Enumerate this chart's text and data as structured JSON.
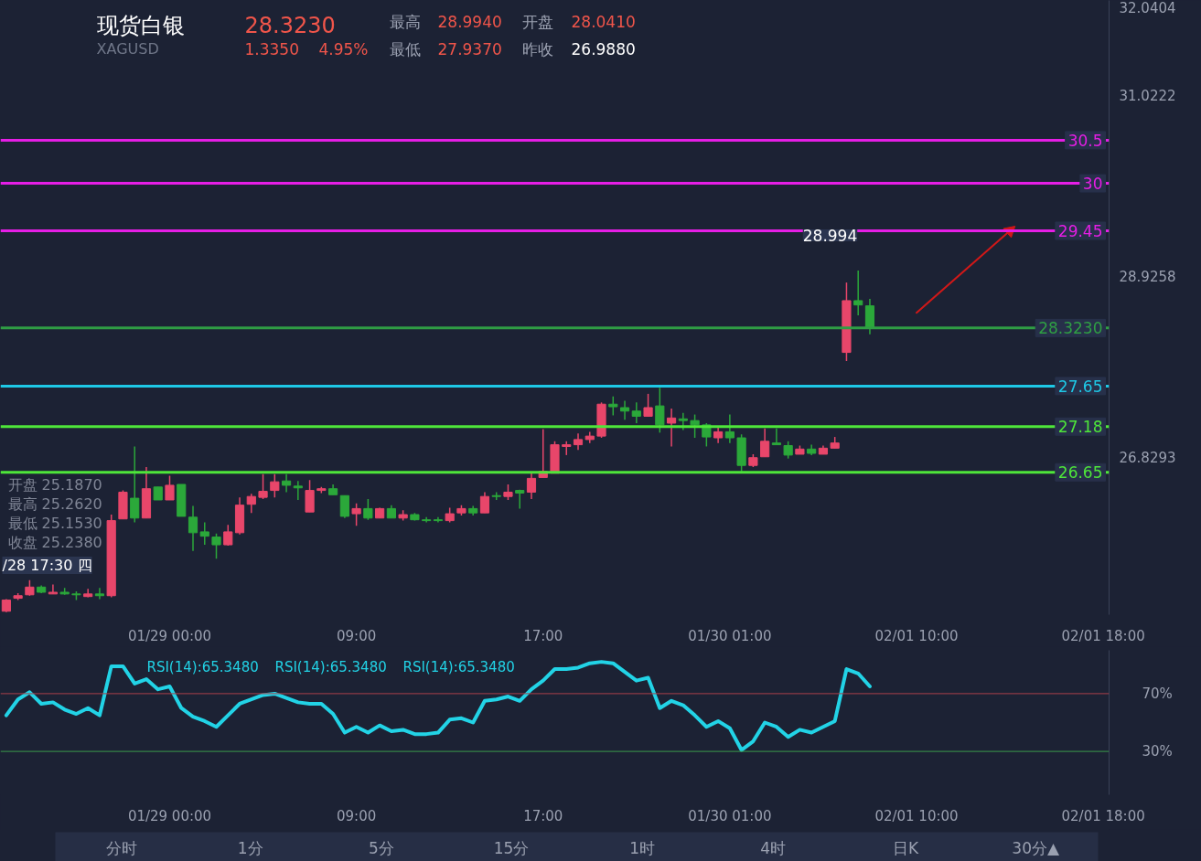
{
  "chart_data": [
    {
      "type": "candlestick",
      "title": "现货白银",
      "subtitle": "XAGUSD",
      "categories": [
        null,
        null,
        null,
        null,
        null,
        null,
        null,
        null,
        null,
        null,
        null,
        null,
        null,
        null,
        "01/29 00:00",
        null,
        null,
        null,
        null,
        null,
        null,
        null,
        null,
        null,
        null,
        null,
        null,
        null,
        null,
        null,
        "09:00",
        null,
        null,
        null,
        null,
        null,
        null,
        null,
        null,
        null,
        null,
        null,
        null,
        null,
        null,
        null,
        "17:00",
        null,
        null,
        null,
        null,
        null,
        null,
        null,
        null,
        null,
        null,
        null,
        null,
        null,
        null,
        null,
        "01/30 01:00",
        null,
        null,
        null,
        null,
        null,
        null,
        null,
        null,
        null,
        null,
        null,
        null,
        null,
        null,
        null,
        "02/01 10:00",
        null,
        null,
        null,
        null,
        null,
        null,
        null,
        null,
        null,
        null,
        null,
        null,
        null,
        null,
        null,
        "02/01 18:00"
      ],
      "ohlc": [
        [
          25.04,
          25.18,
          25.03,
          25.17
        ],
        [
          25.19,
          25.25,
          25.17,
          25.22
        ],
        [
          25.23,
          25.4,
          25.22,
          25.32
        ],
        [
          25.32,
          25.34,
          25.25,
          25.26
        ],
        [
          25.24,
          25.35,
          25.24,
          25.26
        ],
        [
          25.26,
          25.31,
          25.23,
          25.24
        ],
        [
          25.24,
          25.27,
          25.17,
          25.23
        ],
        [
          25.21,
          25.3,
          25.2,
          25.24
        ],
        [
          25.24,
          25.31,
          25.18,
          25.22
        ],
        [
          25.22,
          26.16,
          25.2,
          26.09
        ],
        [
          26.11,
          26.44,
          26.11,
          26.42
        ],
        [
          26.35,
          26.95,
          26.07,
          26.12
        ],
        [
          26.12,
          26.71,
          26.12,
          26.46
        ],
        [
          26.48,
          26.48,
          26.33,
          26.33
        ],
        [
          26.33,
          26.61,
          26.33,
          26.5
        ],
        [
          26.51,
          26.51,
          26.14,
          26.14
        ],
        [
          26.13,
          26.26,
          25.74,
          25.95
        ],
        [
          25.96,
          26.07,
          25.81,
          25.91
        ],
        [
          25.9,
          25.94,
          25.65,
          25.81
        ],
        [
          25.81,
          26.04,
          25.8,
          25.96
        ],
        [
          25.95,
          26.36,
          25.93,
          26.27
        ],
        [
          26.28,
          26.4,
          26.18,
          26.37
        ],
        [
          26.36,
          26.63,
          26.34,
          26.43
        ],
        [
          26.44,
          26.63,
          26.36,
          26.54
        ],
        [
          26.55,
          26.63,
          26.42,
          26.5
        ],
        [
          26.49,
          26.55,
          26.33,
          26.47
        ],
        [
          26.19,
          26.56,
          26.19,
          26.44
        ],
        [
          26.44,
          26.48,
          26.41,
          26.46
        ],
        [
          26.46,
          26.51,
          26.39,
          26.39
        ],
        [
          26.38,
          26.38,
          26.12,
          26.14
        ],
        [
          26.17,
          26.29,
          26.03,
          26.23
        ],
        [
          26.23,
          26.34,
          26.1,
          26.12
        ],
        [
          26.12,
          26.24,
          26.12,
          26.23
        ],
        [
          26.23,
          26.27,
          26.12,
          26.12
        ],
        [
          26.12,
          26.21,
          26.09,
          26.16
        ],
        [
          26.16,
          26.18,
          26.09,
          26.1
        ],
        [
          26.1,
          26.13,
          26.07,
          26.09
        ],
        [
          26.1,
          26.13,
          26.07,
          26.09
        ],
        [
          26.09,
          26.24,
          26.07,
          26.17
        ],
        [
          26.18,
          26.27,
          26.15,
          26.23
        ],
        [
          26.23,
          26.26,
          26.15,
          26.18
        ],
        [
          26.18,
          26.42,
          26.18,
          26.37
        ],
        [
          26.38,
          26.42,
          26.33,
          26.37
        ],
        [
          26.37,
          26.51,
          26.33,
          26.42
        ],
        [
          26.44,
          26.45,
          26.23,
          26.41
        ],
        [
          26.42,
          26.64,
          26.34,
          26.58
        ],
        [
          26.59,
          27.15,
          26.59,
          26.66
        ],
        [
          26.64,
          27.01,
          26.64,
          26.97
        ],
        [
          26.95,
          27.01,
          26.85,
          26.97
        ],
        [
          26.97,
          27.1,
          26.91,
          27.03
        ],
        [
          27.03,
          27.12,
          26.99,
          27.07
        ],
        [
          27.07,
          27.46,
          27.05,
          27.44
        ],
        [
          27.44,
          27.53,
          27.31,
          27.41
        ],
        [
          27.4,
          27.48,
          27.26,
          27.36
        ],
        [
          27.36,
          27.46,
          27.22,
          27.3
        ],
        [
          27.3,
          27.56,
          27.3,
          27.4
        ],
        [
          27.42,
          27.63,
          27.11,
          27.2
        ],
        [
          27.22,
          27.39,
          26.95,
          27.28
        ],
        [
          27.27,
          27.34,
          27.14,
          27.25
        ],
        [
          27.25,
          27.32,
          27.05,
          27.2
        ],
        [
          27.2,
          27.22,
          26.95,
          27.06
        ],
        [
          27.05,
          27.17,
          26.99,
          27.12
        ],
        [
          27.12,
          27.32,
          26.99,
          27.05
        ],
        [
          27.05,
          27.09,
          26.66,
          26.73
        ],
        [
          26.73,
          26.86,
          26.71,
          26.82
        ],
        [
          26.83,
          27.16,
          26.83,
          27.01
        ],
        [
          26.99,
          27.16,
          26.97,
          26.97
        ],
        [
          26.96,
          27.01,
          26.81,
          26.85
        ],
        [
          26.86,
          26.96,
          26.86,
          26.92
        ],
        [
          26.92,
          26.97,
          26.85,
          26.87
        ],
        [
          26.86,
          26.96,
          26.86,
          26.93
        ],
        [
          26.93,
          27.06,
          26.93,
          26.99
        ],
        [
          28.04,
          28.85,
          27.94,
          28.64
        ],
        [
          28.64,
          28.99,
          28.47,
          28.59
        ],
        [
          28.58,
          28.66,
          28.25,
          28.32
        ],
        null,
        null,
        null,
        null,
        null,
        null,
        null,
        null,
        null,
        null,
        null,
        null,
        null,
        null,
        null,
        null,
        null,
        null,
        null,
        null
      ],
      "colors": [
        "#e8466a",
        "#e8466a",
        "#e8466a",
        "#2ba83a",
        "#e8466a",
        "#2ba83a",
        "#2ba83a",
        "#e8466a",
        "#2ba83a",
        "#e8466a",
        "#e8466a",
        "#2ba83a",
        "#e8466a",
        "#2ba83a",
        "#e8466a",
        "#2ba83a",
        "#2ba83a",
        "#2ba83a",
        "#2ba83a",
        "#e8466a",
        "#e8466a",
        "#e8466a",
        "#e8466a",
        "#e8466a",
        "#2ba83a",
        "#2ba83a",
        "#e8466a",
        "#e8466a",
        "#2ba83a",
        "#2ba83a",
        "#e8466a",
        "#2ba83a",
        "#e8466a",
        "#2ba83a",
        "#e8466a",
        "#2ba83a",
        "#2ba83a",
        "#2ba83a",
        "#e8466a",
        "#e8466a",
        "#2ba83a",
        "#e8466a",
        "#2ba83a",
        "#e8466a",
        "#2ba83a",
        "#e8466a",
        "#e8466a",
        "#e8466a",
        "#e8466a",
        "#e8466a",
        "#e8466a",
        "#e8466a",
        "#2ba83a",
        "#2ba83a",
        "#2ba83a",
        "#e8466a",
        "#2ba83a",
        "#e8466a",
        "#2ba83a",
        "#2ba83a",
        "#2ba83a",
        "#e8466a",
        "#2ba83a",
        "#2ba83a",
        "#e8466a",
        "#e8466a",
        "#2ba83a",
        "#2ba83a",
        "#e8466a",
        "#2ba83a",
        "#e8466a",
        "#e8466a",
        "#e8466a",
        "#2ba83a",
        "#2ba83a",
        null,
        null,
        null,
        null,
        null,
        null,
        null,
        null,
        null,
        null,
        null,
        null,
        null,
        null,
        null,
        null,
        null,
        null,
        null,
        null
      ],
      "series": [
        {
          "type": "line",
          "color": "#d01818",
          "values": [
            null,
            null,
            null,
            null,
            null,
            null,
            null,
            null,
            null,
            null,
            null,
            null,
            null,
            null,
            null,
            null,
            null,
            null,
            null,
            null,
            null,
            null,
            null,
            null,
            null,
            null,
            null,
            null,
            null,
            null,
            null,
            null,
            null,
            null,
            null,
            null,
            null,
            null,
            null,
            null,
            null,
            null,
            null,
            null,
            null,
            null,
            null,
            null,
            null,
            null,
            null,
            null,
            null,
            null,
            null,
            null,
            null,
            null,
            null,
            null,
            null,
            null,
            null,
            null,
            null,
            null,
            null,
            null,
            null,
            null,
            null,
            null,
            null,
            null,
            null,
            null,
            null,
            null,
            28.5,
            null,
            null,
            null,
            null,
            null,
            null,
            null,
            29.45,
            null,
            null,
            null,
            null,
            null,
            null,
            null,
            null
          ]
        }
      ],
      "ylim": [
        25.0,
        32.12
      ],
      "yticks": [
        {
          "value": 26.8293,
          "label": "26.8293"
        },
        {
          "value": 28.9258,
          "label": "28.9258"
        },
        {
          "value": 31.0222,
          "label": "31.0222"
        },
        {
          "value": 32.0404,
          "label": "32.0404"
        }
      ],
      "ref_lines": [
        {
          "axis": "y",
          "value": 30.5,
          "label": "30.5",
          "color": "#e51ee5"
        },
        {
          "axis": "y",
          "value": 30,
          "label": "30",
          "color": "#e51ee5"
        },
        {
          "axis": "y",
          "value": 29.45,
          "label": "29.45",
          "color": "#e51ee5"
        },
        {
          "axis": "y",
          "value": 28.323,
          "label": "28.3230",
          "color": "#2f9e44"
        },
        {
          "axis": "y",
          "value": 27.65,
          "label": "27.65",
          "color": "#1ec8e6"
        },
        {
          "axis": "y",
          "value": 27.18,
          "label": "27.18",
          "color": "#4ee63a"
        },
        {
          "axis": "y",
          "value": 26.65,
          "label": "26.65",
          "color": "#4ee63a"
        }
      ],
      "annotations": [
        "28.3230",
        "1.3350",
        "4.95%",
        "最高",
        "28.9940",
        "开盘",
        "28.0410",
        "最低",
        "27.9370",
        "昨收",
        "26.9880",
        "开盘 25.1870",
        "最高 25.2620",
        "最低 25.1530",
        "收盘 25.2380",
        "28.994",
        "/28 17:30 四"
      ]
    },
    {
      "type": "line",
      "legend": "top left",
      "categories": [
        null,
        null,
        null,
        null,
        null,
        null,
        null,
        null,
        null,
        null,
        null,
        null,
        null,
        null,
        "01/29 00:00",
        null,
        null,
        null,
        null,
        null,
        null,
        null,
        null,
        null,
        null,
        null,
        null,
        null,
        null,
        null,
        "09:00",
        null,
        null,
        null,
        null,
        null,
        null,
        null,
        null,
        null,
        null,
        null,
        null,
        null,
        null,
        null,
        "17:00",
        null,
        null,
        null,
        null,
        null,
        null,
        null,
        null,
        null,
        null,
        null,
        null,
        null,
        null,
        null,
        "01/30 01:00",
        null,
        null,
        null,
        null,
        null,
        null,
        null,
        null,
        null,
        null,
        null,
        null,
        null,
        null,
        null,
        "02/01 10:00",
        null,
        null,
        null,
        null,
        null,
        null,
        null,
        null,
        null,
        null,
        null,
        null,
        null,
        null,
        null,
        "02/01 18:00"
      ],
      "series": [
        {
          "name": "RSI(14):65.3480",
          "color": "#22d3e6",
          "values": [
            55,
            66,
            71,
            63,
            64,
            59,
            56,
            60,
            55,
            89,
            89,
            77,
            80,
            73,
            75,
            60,
            54,
            51,
            47,
            55,
            63,
            66,
            69,
            70,
            67,
            64,
            63,
            63,
            56,
            43,
            47,
            43,
            48,
            44,
            45,
            42,
            42,
            43,
            52,
            53,
            50,
            65,
            66,
            68,
            65,
            73,
            79,
            87,
            87,
            88,
            91,
            92,
            91,
            85,
            79,
            81,
            60,
            65,
            62,
            55,
            47,
            51,
            46,
            31,
            37,
            50,
            47,
            40,
            45,
            43,
            47,
            51,
            87,
            84,
            75,
            null,
            null,
            null,
            null,
            null,
            null,
            null,
            null,
            null,
            null,
            null,
            null,
            null,
            null,
            null,
            null,
            null,
            null,
            null,
            null
          ]
        }
      ],
      "ylim": [
        0,
        100
      ],
      "yticks": [
        {
          "value": 30,
          "label": "30%"
        },
        {
          "value": 70,
          "label": "70%"
        }
      ],
      "ref_lines": [
        {
          "axis": "y",
          "value": 70,
          "color": "#a8404a"
        },
        {
          "axis": "y",
          "value": 30,
          "color": "#3c9c4c"
        }
      ],
      "annotations": [
        "RSI(14):65.3480",
        "RSI(14):65.3480"
      ]
    },
    {
      "type": "other",
      "annotations": [
        "分时",
        "1分",
        "5分",
        "15分",
        "1时",
        "4时",
        "日K",
        "30分▲"
      ]
    }
  ]
}
